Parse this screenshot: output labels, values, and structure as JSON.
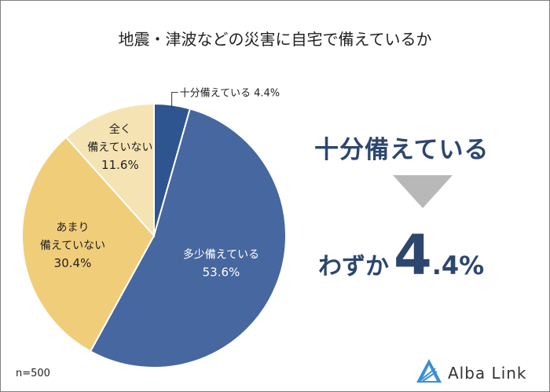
{
  "chart_data": {
    "type": "pie",
    "title": "地震・津波などの災害に自宅で備えているか",
    "slices": [
      {
        "label": "十分備えている",
        "value": 4.4,
        "value_text": "4.4%",
        "color": "#2f5590"
      },
      {
        "label": "多少備えている",
        "value": 53.6,
        "value_text": "53.6%",
        "color": "#46679f"
      },
      {
        "label_lines": [
          "あまり",
          "備えていない"
        ],
        "value": 30.4,
        "value_text": "30.4%",
        "color": "#f0cd79"
      },
      {
        "label_lines": [
          "全く",
          "備えていない"
        ],
        "value": 11.6,
        "value_text": "11.6%",
        "color": "#f5e3b3"
      }
    ]
  },
  "sample": "n=500",
  "callout": {
    "headline": "十分備えている",
    "prefix": "わずか",
    "big": "4",
    "small": ".4%"
  },
  "brand": "Alba Link"
}
